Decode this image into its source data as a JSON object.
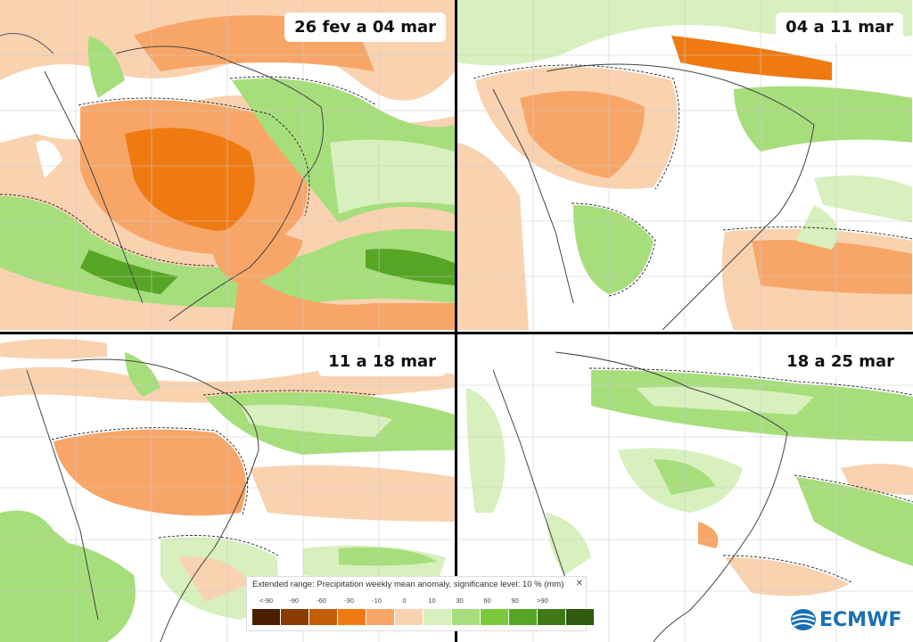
{
  "panels": [
    {
      "label": "26 fev a 04 mar"
    },
    {
      "label": "04 a 11 mar"
    },
    {
      "label": "11 a 18 mar"
    },
    {
      "label": "18 a 25 mar"
    }
  ],
  "legend": {
    "title": "Extended range: Precipitation weekly mean anomaly, significance level: 10 % (mm)",
    "close_icon": "close-icon",
    "ticks": [
      "<-90",
      "-90",
      "-60",
      "-30",
      "-10",
      "0",
      "10",
      "30",
      "60",
      "90",
      ">90"
    ],
    "colors": [
      "#4a1f00",
      "#8b3d00",
      "#c25e05",
      "#f07a12",
      "#f7a668",
      "#f9d2b0",
      "#d7f0bd",
      "#a7de7c",
      "#7cc93e",
      "#57a525",
      "#3f7a17",
      "#2f5a10"
    ]
  },
  "logo": {
    "text": "ECMWF",
    "icon": "ecmwf-logo-icon"
  },
  "colors": {
    "dry_strong": "#f07a12",
    "dry": "#f7a668",
    "dry_light": "#f9d2b0",
    "wet_light": "#d7f0bd",
    "wet": "#a7de7c",
    "wet_strong": "#7cc93e"
  }
}
